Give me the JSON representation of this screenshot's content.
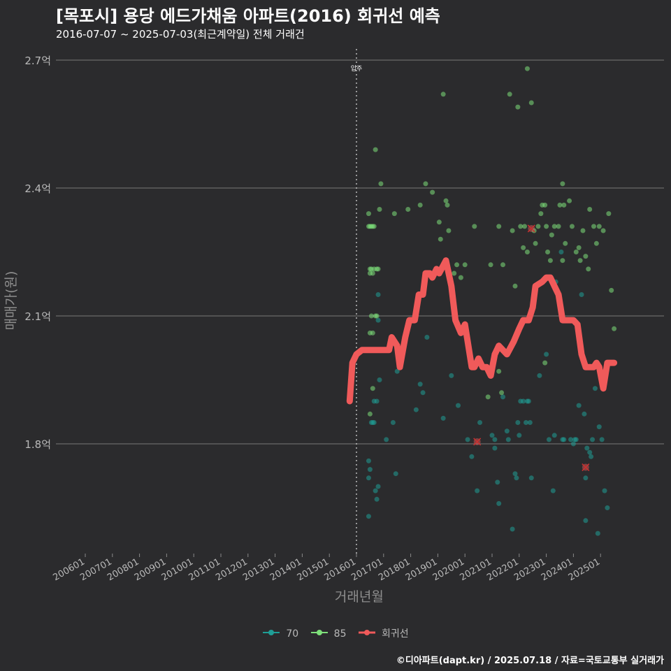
{
  "header": {
    "title": "[목포시] 용당 에드가채움 아파트(2016) 회귀선 예측",
    "subtitle": "2016-07-07 ~ 2025-07-03(최근계약일) 전체 거래건"
  },
  "caption": "©디아파트(dapt.kr) / 2025.07.18 / 자료=국토교통부 실거래가",
  "colors": {
    "background": "#2b2b2d",
    "series_70": "#1f9e96",
    "series_85": "#7ee07a",
    "regression": "#f05a5a",
    "grid": "#6a6a6a"
  },
  "chart_data": {
    "type": "scatter",
    "xlabel": "거래년월",
    "ylabel": "매매가(원)",
    "x_ticks": [
      "200601",
      "200701",
      "200801",
      "200901",
      "201001",
      "201101",
      "201201",
      "201301",
      "201401",
      "201501",
      "201601",
      "201701",
      "201801",
      "201901",
      "202001",
      "202101",
      "202201",
      "202301",
      "202401",
      "202501"
    ],
    "y_ticks": [
      {
        "value": 1.8,
        "label": "1.8억"
      },
      {
        "value": 2.1,
        "label": "2.1억"
      },
      {
        "value": 2.4,
        "label": "2.4억"
      },
      {
        "value": 2.7,
        "label": "2.7억"
      }
    ],
    "xlim": [
      2006.0,
      2025.6
    ],
    "ylim": [
      1.545,
      2.73
    ],
    "grid": true,
    "legend_position": "bottom",
    "annotation": {
      "x": 2016.0,
      "label": "입주"
    },
    "series": [
      {
        "name": "70",
        "color": "#1f9e96",
        "points": [
          [
            2016.45,
            1.63
          ],
          [
            2016.45,
            1.72
          ],
          [
            2016.45,
            1.76
          ],
          [
            2016.5,
            1.74
          ],
          [
            2016.55,
            1.85
          ],
          [
            2016.6,
            1.85
          ],
          [
            2016.65,
            1.9
          ],
          [
            2016.65,
            1.85
          ],
          [
            2016.75,
            1.9
          ],
          [
            2016.7,
            1.69
          ],
          [
            2016.75,
            1.67
          ],
          [
            2016.8,
            1.7
          ],
          [
            2016.8,
            2.15
          ],
          [
            2016.85,
            1.95
          ],
          [
            2016.8,
            2.09
          ],
          [
            2017.1,
            1.81
          ],
          [
            2017.35,
            1.85
          ],
          [
            2017.45,
            1.73
          ],
          [
            2017.5,
            1.97
          ],
          [
            2018.2,
            1.88
          ],
          [
            2018.35,
            1.94
          ],
          [
            2018.45,
            1.92
          ],
          [
            2018.6,
            2.05
          ],
          [
            2019.2,
            1.86
          ],
          [
            2019.5,
            1.96
          ],
          [
            2019.75,
            1.89
          ],
          [
            2020.1,
            1.81
          ],
          [
            2020.25,
            1.77
          ],
          [
            2020.45,
            1.69
          ],
          [
            2020.55,
            1.85
          ],
          [
            2021.0,
            1.82
          ],
          [
            2021.1,
            1.81
          ],
          [
            2021.1,
            1.79
          ],
          [
            2021.2,
            1.71
          ],
          [
            2021.25,
            1.66
          ],
          [
            2021.4,
            1.91
          ],
          [
            2021.55,
            1.83
          ],
          [
            2021.6,
            1.81
          ],
          [
            2021.75,
            1.6
          ],
          [
            2021.85,
            1.73
          ],
          [
            2021.9,
            1.72
          ],
          [
            2021.95,
            1.85
          ],
          [
            2022.0,
            1.82
          ],
          [
            2022.05,
            1.9
          ],
          [
            2022.15,
            1.9
          ],
          [
            2022.25,
            1.85
          ],
          [
            2022.3,
            1.9
          ],
          [
            2022.35,
            1.9
          ],
          [
            2022.4,
            1.85
          ],
          [
            2022.45,
            1.72
          ],
          [
            2022.75,
            1.96
          ],
          [
            2023.0,
            2.01
          ],
          [
            2023.1,
            1.81
          ],
          [
            2023.3,
            1.82
          ],
          [
            2023.25,
            1.69
          ],
          [
            2023.35,
            2.18
          ],
          [
            2023.55,
            2.25
          ],
          [
            2023.6,
            1.81
          ],
          [
            2023.65,
            1.81
          ],
          [
            2023.9,
            1.81
          ],
          [
            2024.0,
            1.8
          ],
          [
            2024.05,
            1.81
          ],
          [
            2024.1,
            1.81
          ],
          [
            2024.2,
            1.89
          ],
          [
            2024.3,
            2.15
          ],
          [
            2024.4,
            1.87
          ],
          [
            2024.45,
            1.72
          ],
          [
            2024.45,
            1.62
          ],
          [
            2024.5,
            1.79
          ],
          [
            2024.6,
            1.78
          ],
          [
            2024.65,
            1.77
          ],
          [
            2024.7,
            1.81
          ],
          [
            2024.8,
            1.93
          ],
          [
            2024.9,
            1.59
          ],
          [
            2024.95,
            1.84
          ],
          [
            2025.05,
            1.81
          ],
          [
            2025.15,
            1.69
          ],
          [
            2025.25,
            1.65
          ]
        ]
      },
      {
        "name": "85",
        "color": "#7ee07a",
        "points": [
          [
            2016.45,
            2.34
          ],
          [
            2016.45,
            2.31
          ],
          [
            2016.5,
            2.31
          ],
          [
            2016.55,
            2.31
          ],
          [
            2016.6,
            2.31
          ],
          [
            2016.65,
            2.31
          ],
          [
            2016.5,
            2.2
          ],
          [
            2016.5,
            2.21
          ],
          [
            2016.55,
            2.21
          ],
          [
            2016.6,
            2.2
          ],
          [
            2016.65,
            2.21
          ],
          [
            2016.75,
            2.21
          ],
          [
            2016.8,
            2.21
          ],
          [
            2016.7,
            2.1
          ],
          [
            2016.75,
            2.1
          ],
          [
            2016.55,
            2.1
          ],
          [
            2016.6,
            2.06
          ],
          [
            2016.5,
            2.06
          ],
          [
            2016.6,
            1.93
          ],
          [
            2016.5,
            1.87
          ],
          [
            2016.7,
            2.49
          ],
          [
            2016.9,
            2.41
          ],
          [
            2016.85,
            2.35
          ],
          [
            2017.4,
            2.34
          ],
          [
            2017.9,
            2.35
          ],
          [
            2018.35,
            2.36
          ],
          [
            2018.55,
            2.41
          ],
          [
            2018.8,
            2.39
          ],
          [
            2019.05,
            2.32
          ],
          [
            2019.1,
            2.28
          ],
          [
            2019.2,
            2.62
          ],
          [
            2019.3,
            2.37
          ],
          [
            2019.35,
            2.36
          ],
          [
            2019.4,
            2.3
          ],
          [
            2019.6,
            2.2
          ],
          [
            2019.7,
            2.22
          ],
          [
            2019.85,
            2.19
          ],
          [
            2020.0,
            2.22
          ],
          [
            2020.35,
            2.31
          ],
          [
            2020.95,
            2.22
          ],
          [
            2021.25,
            2.31
          ],
          [
            2021.4,
            2.22
          ],
          [
            2021.65,
            2.62
          ],
          [
            2021.75,
            2.3
          ],
          [
            2021.85,
            2.17
          ],
          [
            2021.95,
            2.59
          ],
          [
            2022.05,
            2.31
          ],
          [
            2022.15,
            2.26
          ],
          [
            2022.2,
            2.31
          ],
          [
            2022.3,
            2.25
          ],
          [
            2022.45,
            2.6
          ],
          [
            2022.55,
            2.3
          ],
          [
            2022.6,
            2.27
          ],
          [
            2022.7,
            2.31
          ],
          [
            2022.8,
            2.34
          ],
          [
            2022.85,
            2.36
          ],
          [
            2022.95,
            2.36
          ],
          [
            2023.0,
            2.31
          ],
          [
            2023.05,
            2.25
          ],
          [
            2023.15,
            2.23
          ],
          [
            2023.2,
            2.29
          ],
          [
            2023.3,
            2.31
          ],
          [
            2023.45,
            2.31
          ],
          [
            2023.5,
            2.36
          ],
          [
            2023.6,
            2.41
          ],
          [
            2023.6,
            2.23
          ],
          [
            2023.65,
            2.36
          ],
          [
            2023.7,
            2.27
          ],
          [
            2023.85,
            2.37
          ],
          [
            2023.95,
            2.31
          ],
          [
            2024.1,
            2.25
          ],
          [
            2024.2,
            2.26
          ],
          [
            2024.25,
            2.23
          ],
          [
            2024.35,
            2.3
          ],
          [
            2024.45,
            2.24
          ],
          [
            2024.55,
            2.21
          ],
          [
            2024.6,
            2.35
          ],
          [
            2024.75,
            2.31
          ],
          [
            2024.85,
            2.27
          ],
          [
            2024.95,
            2.31
          ],
          [
            2025.1,
            2.3
          ],
          [
            2025.3,
            2.34
          ],
          [
            2025.4,
            2.16
          ],
          [
            2025.5,
            2.07
          ],
          [
            2022.3,
            2.68
          ],
          [
            2021.25,
            1.97
          ],
          [
            2021.35,
            1.92
          ],
          [
            2022.95,
            1.99
          ],
          [
            2020.85,
            1.91
          ]
        ]
      },
      {
        "name": "회귀선",
        "color": "#f05a5a",
        "line": [
          [
            2015.75,
            1.9
          ],
          [
            2015.85,
            1.99
          ],
          [
            2016.0,
            2.01
          ],
          [
            2016.2,
            2.02
          ],
          [
            2016.6,
            2.02
          ],
          [
            2016.95,
            2.02
          ],
          [
            2017.2,
            2.02
          ],
          [
            2017.3,
            2.05
          ],
          [
            2017.5,
            2.03
          ],
          [
            2017.6,
            1.98
          ],
          [
            2017.8,
            2.05
          ],
          [
            2017.95,
            2.09
          ],
          [
            2018.15,
            2.09
          ],
          [
            2018.3,
            2.15
          ],
          [
            2018.45,
            2.15
          ],
          [
            2018.55,
            2.2
          ],
          [
            2018.7,
            2.2
          ],
          [
            2018.8,
            2.19
          ],
          [
            2018.95,
            2.21
          ],
          [
            2019.05,
            2.2
          ],
          [
            2019.3,
            2.23
          ],
          [
            2019.5,
            2.17
          ],
          [
            2019.65,
            2.09
          ],
          [
            2019.85,
            2.06
          ],
          [
            2020.0,
            2.08
          ],
          [
            2020.1,
            2.04
          ],
          [
            2020.25,
            1.98
          ],
          [
            2020.35,
            1.98
          ],
          [
            2020.5,
            2.0
          ],
          [
            2020.65,
            1.98
          ],
          [
            2020.8,
            1.98
          ],
          [
            2020.95,
            1.96
          ],
          [
            2021.1,
            2.01
          ],
          [
            2021.25,
            2.03
          ],
          [
            2021.4,
            2.02
          ],
          [
            2021.55,
            2.01
          ],
          [
            2021.8,
            2.04
          ],
          [
            2022.0,
            2.07
          ],
          [
            2022.15,
            2.09
          ],
          [
            2022.35,
            2.09
          ],
          [
            2022.5,
            2.12
          ],
          [
            2022.6,
            2.17
          ],
          [
            2022.85,
            2.18
          ],
          [
            2023.0,
            2.19
          ],
          [
            2023.15,
            2.19
          ],
          [
            2023.3,
            2.17
          ],
          [
            2023.45,
            2.15
          ],
          [
            2023.6,
            2.09
          ],
          [
            2023.8,
            2.09
          ],
          [
            2024.0,
            2.09
          ],
          [
            2024.15,
            2.08
          ],
          [
            2024.3,
            2.01
          ],
          [
            2024.45,
            1.98
          ],
          [
            2024.6,
            1.98
          ],
          [
            2024.75,
            1.98
          ],
          [
            2024.85,
            1.99
          ],
          [
            2024.95,
            1.98
          ],
          [
            2025.1,
            1.93
          ],
          [
            2025.25,
            1.99
          ],
          [
            2025.5,
            1.99
          ]
        ],
        "markers": [
          [
            2020.45,
            1.805
          ],
          [
            2022.45,
            2.305
          ],
          [
            2024.45,
            1.745
          ]
        ]
      }
    ]
  }
}
